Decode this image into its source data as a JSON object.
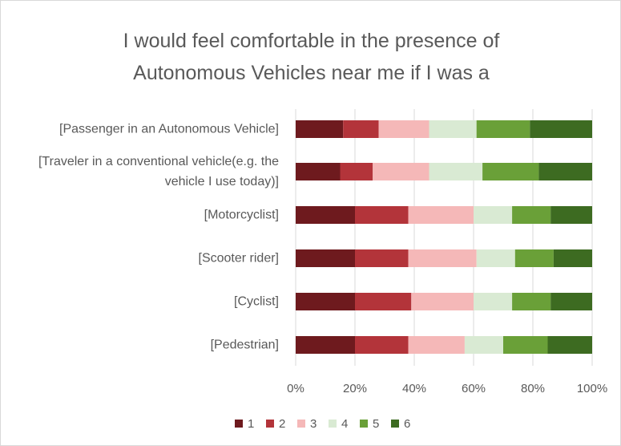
{
  "chart_data": {
    "type": "stacked_bar_horizontal",
    "title": "I would feel comfortable in the presence of Autonomous Vehicles near me if I was a",
    "categories": [
      "[Passenger in an Autonomous Vehicle]",
      "[Traveler in a conventional vehicle(e.g. the vehicle I use today)]",
      "[Motorcyclist]",
      "[Scooter rider]",
      "[Cyclist]",
      "[Pedestrian]"
    ],
    "series": [
      {
        "name": "1",
        "color": "#6e1a1e",
        "values": [
          16,
          15,
          20,
          20,
          20,
          20
        ]
      },
      {
        "name": "2",
        "color": "#b3343a",
        "values": [
          12,
          11,
          18,
          18,
          19,
          18
        ]
      },
      {
        "name": "3",
        "color": "#f5b8b8",
        "values": [
          17,
          19,
          22,
          23,
          21,
          19
        ]
      },
      {
        "name": "4",
        "color": "#d9ead3",
        "values": [
          16,
          18,
          13,
          13,
          13,
          13
        ]
      },
      {
        "name": "5",
        "color": "#6aa038",
        "values": [
          18,
          19,
          13,
          13,
          13,
          15
        ]
      },
      {
        "name": "6",
        "color": "#3d6b21",
        "values": [
          21,
          18,
          14,
          13,
          14,
          15
        ]
      }
    ],
    "xlim": [
      0,
      100
    ],
    "xticks": [
      {
        "value": 0,
        "label": "0%"
      },
      {
        "value": 20,
        "label": "20%"
      },
      {
        "value": 40,
        "label": "40%"
      },
      {
        "value": 60,
        "label": "60%"
      },
      {
        "value": 80,
        "label": "80%"
      },
      {
        "value": 100,
        "label": "100%"
      }
    ],
    "grid": true,
    "legend": "bottom"
  }
}
